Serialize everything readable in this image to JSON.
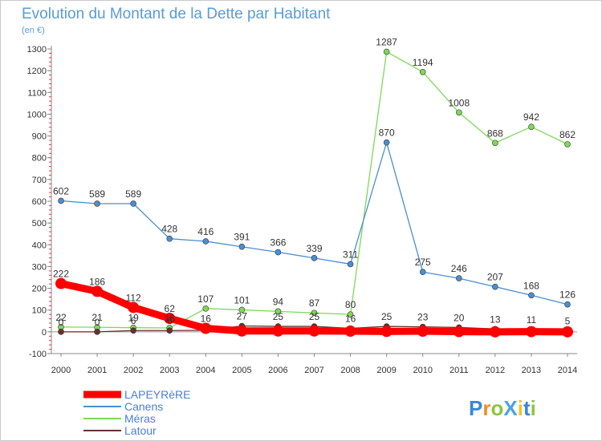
{
  "chart_data": {
    "type": "line",
    "title": "Evolution du Montant de la Dette par Habitant",
    "subtitle": "(en €)",
    "xlabel": "",
    "ylabel": "",
    "categories": [
      "2000",
      "2001",
      "2002",
      "2003",
      "2004",
      "2005",
      "2006",
      "2007",
      "2008",
      "2009",
      "2010",
      "2011",
      "2012",
      "2013",
      "2014"
    ],
    "ylim": [
      -100,
      1300
    ],
    "yticks": [
      -100,
      0,
      100,
      200,
      300,
      400,
      500,
      600,
      700,
      800,
      900,
      1000,
      1100,
      1200,
      1300
    ],
    "grid": false,
    "legend_position": "bottom-left",
    "series": [
      {
        "name": "LAPEYRèRE",
        "color": "#ff0000",
        "values": [
          222,
          186,
          112,
          62,
          16,
          4,
          4,
          4,
          3,
          2,
          3,
          1,
          0,
          1,
          0
        ],
        "labels": [
          "222",
          "186",
          "112",
          "62",
          "16",
          "",
          "",
          "",
          "",
          "",
          "",
          "",
          "",
          "",
          ""
        ]
      },
      {
        "name": "Canens",
        "color": "#4a8fd1",
        "values": [
          602,
          589,
          589,
          428,
          416,
          391,
          366,
          339,
          311,
          870,
          275,
          246,
          207,
          168,
          126
        ],
        "labels": [
          "602",
          "589",
          "589",
          "428",
          "416",
          "391",
          "366",
          "339",
          "311",
          "870",
          "275",
          "246",
          "207",
          "168",
          "126"
        ]
      },
      {
        "name": "Méras",
        "color": "#7ed957",
        "values": [
          22,
          21,
          19,
          18,
          107,
          101,
          94,
          87,
          80,
          1287,
          1194,
          1008,
          868,
          942,
          862
        ],
        "labels": [
          "22",
          "21",
          "19",
          "18",
          "107",
          "101",
          "94",
          "87",
          "80",
          "1287",
          "1194",
          "1008",
          "868",
          "942",
          "862"
        ]
      },
      {
        "name": "Latour",
        "color": "#6b2e2e",
        "values": [
          0,
          0,
          6,
          6,
          7,
          27,
          25,
          25,
          16,
          25,
          23,
          20,
          13,
          11,
          5
        ],
        "labels": [
          "0",
          "0",
          "6",
          "6",
          "",
          "27",
          "25",
          "25",
          "16",
          "25",
          "23",
          "20",
          "13",
          "11",
          "5"
        ]
      }
    ]
  },
  "legend": {
    "items": [
      "LAPEYRèRE",
      "Canens",
      "Méras",
      "Latour"
    ]
  },
  "logo": {
    "text": "ProXiti"
  }
}
